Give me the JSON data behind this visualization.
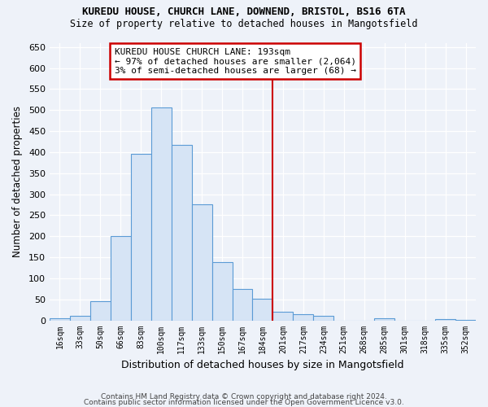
{
  "title1": "KUREDU HOUSE, CHURCH LANE, DOWNEND, BRISTOL, BS16 6TA",
  "title2": "Size of property relative to detached houses in Mangotsfield",
  "xlabel": "Distribution of detached houses by size in Mangotsfield",
  "ylabel": "Number of detached properties",
  "categories": [
    "16sqm",
    "33sqm",
    "50sqm",
    "66sqm",
    "83sqm",
    "100sqm",
    "117sqm",
    "133sqm",
    "150sqm",
    "167sqm",
    "184sqm",
    "201sqm",
    "217sqm",
    "234sqm",
    "251sqm",
    "268sqm",
    "285sqm",
    "301sqm",
    "318sqm",
    "335sqm",
    "352sqm"
  ],
  "bar_heights": [
    5,
    10,
    45,
    200,
    395,
    507,
    418,
    275,
    138,
    75,
    52,
    20,
    15,
    10,
    0,
    0,
    5,
    0,
    0,
    3,
    2
  ],
  "bar_color": "#d6e4f5",
  "bar_edge_color": "#5b9bd5",
  "vline_color": "#cc0000",
  "annotation_text": "KUREDU HOUSE CHURCH LANE: 193sqm\n← 97% of detached houses are smaller (2,064)\n3% of semi-detached houses are larger (68) →",
  "annotation_box_edgecolor": "#cc0000",
  "footer1": "Contains HM Land Registry data © Crown copyright and database right 2024.",
  "footer2": "Contains public sector information licensed under the Open Government Licence v3.0.",
  "ylim": [
    0,
    660
  ],
  "yticks": [
    0,
    50,
    100,
    150,
    200,
    250,
    300,
    350,
    400,
    450,
    500,
    550,
    600,
    650
  ],
  "background_color": "#eef2f9",
  "grid_color": "#ffffff",
  "vline_bin_index": 11
}
